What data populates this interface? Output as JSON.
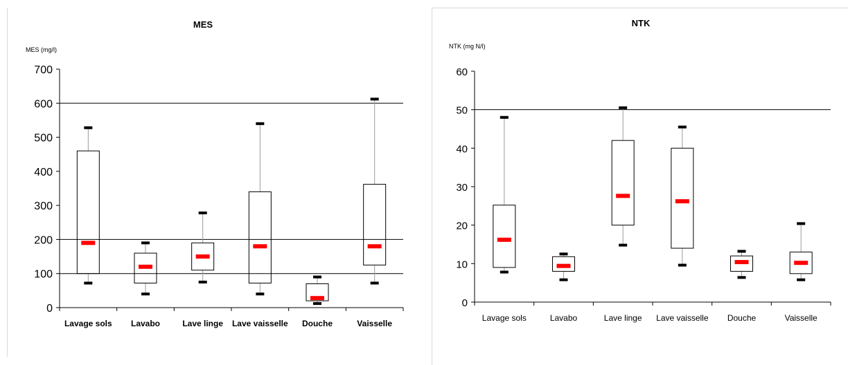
{
  "chart_data": [
    {
      "type": "box",
      "title": "MES",
      "ylabel": "MES (mg/l)",
      "xlabel": "",
      "ylim": [
        0,
        700
      ],
      "yticks": [
        0,
        100,
        200,
        300,
        400,
        500,
        600,
        700
      ],
      "reference_lines": [
        100,
        200,
        600
      ],
      "categories": [
        "Lavage sols",
        "Lavabo",
        "Lave linge",
        "Lave vaisselle",
        "Douche",
        "Vaisselle"
      ],
      "boxes": [
        {
          "min": 72,
          "q1": 100,
          "median": 190,
          "q3": 460,
          "max": 528
        },
        {
          "min": 40,
          "q1": 72,
          "median": 120,
          "q3": 160,
          "max": 190
        },
        {
          "min": 75,
          "q1": 110,
          "median": 150,
          "q3": 190,
          "max": 278
        },
        {
          "min": 40,
          "q1": 72,
          "median": 180,
          "q3": 340,
          "max": 540
        },
        {
          "min": 12,
          "q1": 20,
          "median": 28,
          "q3": 70,
          "max": 90
        },
        {
          "min": 72,
          "q1": 125,
          "median": 180,
          "q3": 362,
          "max": 612
        }
      ],
      "colors": {
        "median": "#ff0000",
        "whisker_cap": "#000000",
        "box": "#000000"
      }
    },
    {
      "type": "box",
      "title": "NTK",
      "ylabel": "NTK (mg N/l)",
      "xlabel": "",
      "ylim": [
        0,
        60
      ],
      "yticks": [
        0,
        10,
        20,
        30,
        40,
        50,
        60
      ],
      "reference_lines": [
        50
      ],
      "categories": [
        "Lavage sols",
        "Lavabo",
        "Lave linge",
        "Lave vaisselle",
        "Douche",
        "Vaisselle"
      ],
      "boxes": [
        {
          "min": 7.8,
          "q1": 9,
          "median": 16.2,
          "q3": 25.2,
          "max": 48
        },
        {
          "min": 5.8,
          "q1": 8,
          "median": 9.4,
          "q3": 11.8,
          "max": 12.5
        },
        {
          "min": 14.8,
          "q1": 20,
          "median": 27.6,
          "q3": 42,
          "max": 50.5
        },
        {
          "min": 9.6,
          "q1": 14,
          "median": 26.2,
          "q3": 40,
          "max": 45.5
        },
        {
          "min": 6.4,
          "q1": 8,
          "median": 10.4,
          "q3": 12,
          "max": 13.2
        },
        {
          "min": 5.8,
          "q1": 7.4,
          "median": 10.2,
          "q3": 13,
          "max": 20.4
        }
      ],
      "colors": {
        "median": "#ff0000",
        "whisker_cap": "#000000",
        "box": "#000000"
      }
    }
  ]
}
